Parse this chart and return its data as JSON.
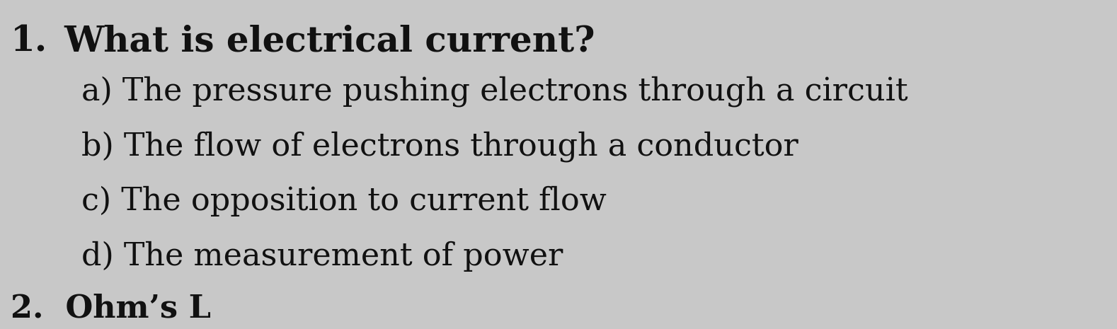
{
  "background_color": "#c8c8c8",
  "question_number": "1.",
  "question_text": "What is electrical current?",
  "options": [
    "a) The pressure pushing electrons through a circuit",
    "b) The flow of electrons through a conductor",
    "c) The opposition to current flow",
    "d) The measurement of power"
  ],
  "partial_next": "2.  Ohm’s L",
  "text_color": "#111111",
  "font_family": "DejaVu Serif"
}
